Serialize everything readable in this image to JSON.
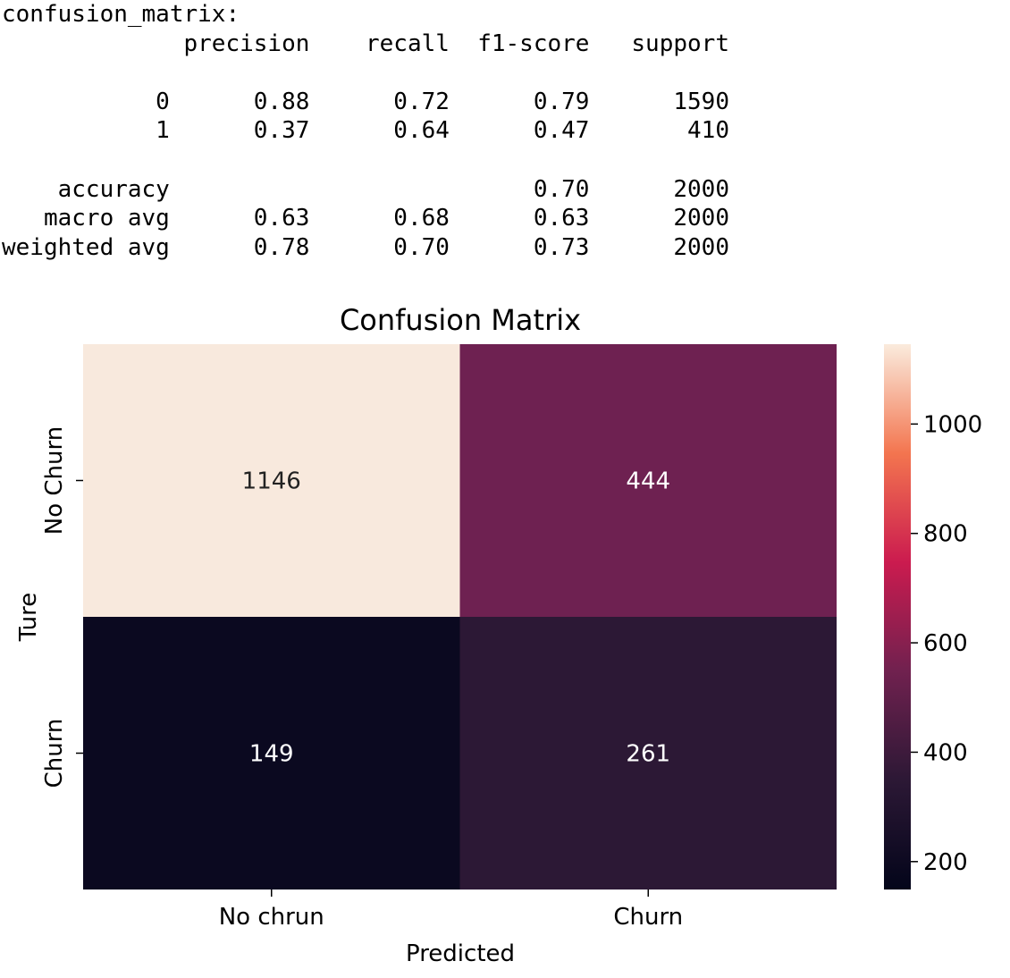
{
  "report": {
    "label": "confusion_matrix:",
    "header": [
      "precision",
      "recall",
      "f1-score",
      "support"
    ],
    "rows": [
      [
        "0",
        "0.88",
        "0.72",
        "0.79",
        "1590"
      ],
      [
        "1",
        "0.37",
        "0.64",
        "0.47",
        "410"
      ],
      [],
      [
        "accuracy",
        "",
        "",
        "0.70",
        "2000"
      ],
      [
        "macro avg",
        "0.63",
        "0.68",
        "0.63",
        "2000"
      ],
      [
        "weighted avg",
        "0.78",
        "0.70",
        "0.73",
        "2000"
      ]
    ]
  },
  "chart_data": {
    "type": "heatmap",
    "title": "Confusion Matrix",
    "xlabel": "Predicted",
    "ylabel": "Ture",
    "x_categories": [
      "No chrun",
      "Churn"
    ],
    "y_categories": [
      "No Churn",
      "Churn"
    ],
    "values": [
      [
        1146,
        444
      ],
      [
        149,
        261
      ]
    ],
    "colormap": "rocket",
    "colorbar": {
      "min": 149,
      "max": 1146,
      "ticks": [
        200,
        400,
        600,
        800,
        1000
      ]
    },
    "colors": {
      "1146": "#f8e9dd",
      "444": "#6e2151",
      "149": "#0b0920",
      "261": "#2c1835"
    }
  }
}
